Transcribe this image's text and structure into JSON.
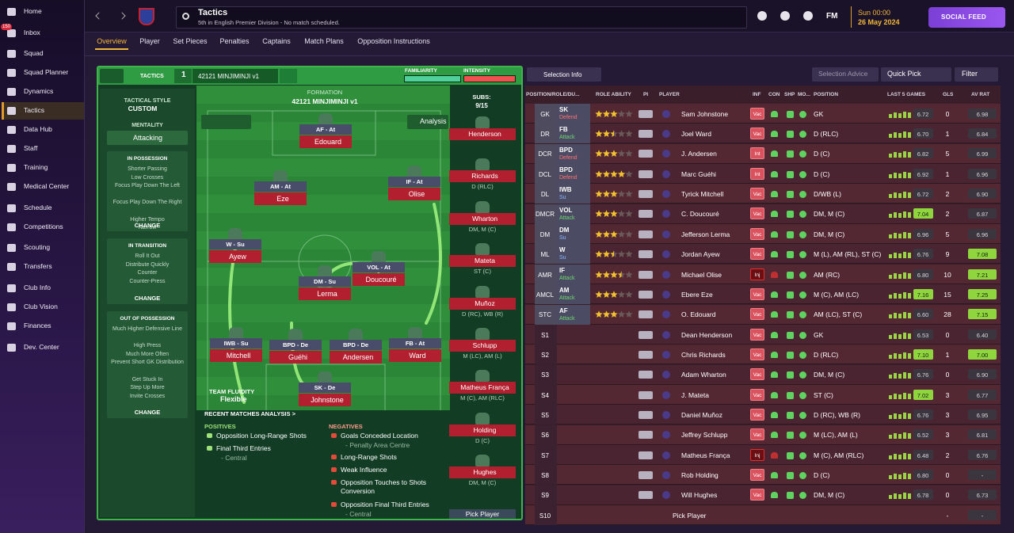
{
  "sidebar": {
    "items": [
      "Home",
      "Inbox",
      "Squad",
      "Squad Planner",
      "Dynamics",
      "Tactics",
      "Data Hub",
      "Staff",
      "Training",
      "Medical Center",
      "Schedule",
      "Competitions",
      "Scouting",
      "Transfers",
      "Club Info",
      "Club Vision",
      "Finances",
      "Dev. Center"
    ],
    "inbox_badge": "150"
  },
  "header": {
    "title": "Tactics",
    "subtitle": "5th in English Premier Division - No match scheduled.",
    "brand": "FM",
    "time": "Sun 00:00",
    "date": "26 May 2024",
    "social_feed": "SOCIAL FEED"
  },
  "tabs": [
    "Overview",
    "Player",
    "Set Pieces",
    "Penalties",
    "Captains",
    "Match Plans",
    "Opposition Instructions"
  ],
  "tactics": {
    "label": "TACTICS",
    "slot": "1",
    "name": "42121 MINJIMINJI v1",
    "familiarity": "FAMILIARITY",
    "intensity": "INTENSITY"
  },
  "style_panel": {
    "tactical_style_label": "TACTICAL STYLE",
    "tactical_style": "CUSTOM",
    "mentality_label": "MENTALITY",
    "mentality": "Attacking",
    "sections": [
      {
        "title": "IN POSSESSION",
        "items": [
          "Shorter Passing",
          "Low Crosses",
          "Focus Play Down The Left",
          "Focus Play Down The Right",
          "Higher Tempo",
          "Narrow"
        ],
        "action": "CHANGE"
      },
      {
        "title": "IN TRANSITION",
        "items": [
          "Roll It Out",
          "Distribute Quickly",
          "Counter",
          "Counter-Press"
        ],
        "action": "CHANGE"
      },
      {
        "title": "OUT OF POSSESSION",
        "items": [
          "Much Higher Defensive Line",
          "High Press",
          "Much More Often",
          "Prevent Short GK Distribution",
          "Get Stuck In",
          "Step Up More",
          "Invite Crosses"
        ],
        "action": "CHANGE"
      }
    ]
  },
  "pitch": {
    "formation_label": "FORMATION",
    "formation": "42121 MINJIMINJI v1",
    "analysis": "Analysis",
    "fluidity_label": "TEAM FLUIDITY",
    "fluidity": "Flexible",
    "players": [
      {
        "role": "AF - At",
        "name": "Edouard"
      },
      {
        "role": "AM - At",
        "name": "Eze"
      },
      {
        "role": "IF - At",
        "name": "Olise"
      },
      {
        "role": "W - Su",
        "name": "Ayew"
      },
      {
        "role": "VOL - At",
        "name": "Doucouré"
      },
      {
        "role": "DM - Su",
        "name": "Lerma"
      },
      {
        "role": "IWB - Su",
        "name": "Mitchell"
      },
      {
        "role": "BPD - De",
        "name": "Guéhi"
      },
      {
        "role": "BPD - De",
        "name": "Andersen"
      },
      {
        "role": "FB - At",
        "name": "Ward"
      },
      {
        "role": "SK - De",
        "name": "Johnstone"
      }
    ]
  },
  "subs": {
    "label": "SUBS:",
    "count": "9/15",
    "pick": "Pick Player",
    "players": [
      {
        "name": "Henderson"
      },
      {
        "name": "Richards",
        "position": "D (RLC)"
      },
      {
        "name": "Wharton",
        "position": "DM, M (C)"
      },
      {
        "name": "Mateta",
        "position": "ST (C)"
      },
      {
        "name": "Muñoz",
        "position": "D (RC), WB (R)"
      },
      {
        "name": "Schlupp",
        "position": "M (LC), AM (L)"
      },
      {
        "name": "Matheus França",
        "position": "M (C), AM (RLC)"
      },
      {
        "name": "Holding",
        "position": "D (C)"
      },
      {
        "name": "Hughes",
        "position": "DM, M (C)"
      }
    ]
  },
  "analysis": {
    "title": "RECENT MATCHES ANALYSIS >",
    "positives_label": "POSITIVES",
    "negatives_label": "NEGATIVES",
    "positives": [
      {
        "label": "Opposition Long-Range Shots"
      },
      {
        "label": "Final Third Entries",
        "detail": "- Central"
      }
    ],
    "negatives": [
      {
        "label": "Goals Conceded Location",
        "detail": "- Penalty Area Centre"
      },
      {
        "label": "Long-Range Shots"
      },
      {
        "label": "Weak Influence"
      },
      {
        "label": "Opposition Touches to Shots Conversion"
      },
      {
        "label": "Opposition Final Third Entries",
        "detail": "- Central"
      }
    ]
  },
  "table": {
    "selection_info": "Selection Info",
    "selection_advice": "Selection Advice",
    "quick_pick": "Quick Pick",
    "filter": "Filter",
    "columns": [
      "POSITION/ROLE/DU...",
      "ROLE ABILITY",
      "PI",
      "PLAYER",
      "INF",
      "CON",
      "SHP",
      "MO...",
      "POSITION",
      "LAST 5 GAMES",
      "GLS",
      "AV RAT"
    ],
    "rows": [
      {
        "pos": "GK",
        "role": "SK",
        "duty": "Defend",
        "ability": 3,
        "player": "Sam Johnstone",
        "inf": "Vac",
        "position": "GK",
        "form": "6.72",
        "goals": 0,
        "rating": "6.98"
      },
      {
        "pos": "DR",
        "role": "FB",
        "duty": "Attack",
        "ability": 2.5,
        "player": "Joel Ward",
        "inf": "Vac",
        "position": "D (RLC)",
        "form": "6.70",
        "goals": 1,
        "rating": "6.84"
      },
      {
        "pos": "DCR",
        "role": "BPD",
        "duty": "Defend",
        "ability": 3,
        "player": "J. Andersen",
        "inf": "Int",
        "position": "D (C)",
        "form": "6.82",
        "goals": 5,
        "rating": "6.99"
      },
      {
        "pos": "DCL",
        "role": "BPD",
        "duty": "Defend",
        "ability": 4,
        "player": "Marc Guéhi",
        "inf": "Int",
        "position": "D (C)",
        "form": "6.92",
        "goals": 1,
        "rating": "6.96"
      },
      {
        "pos": "DL",
        "role": "IWB",
        "duty": "Su",
        "ability": 3,
        "player": "Tyrick Mitchell",
        "inf": "Vac",
        "position": "D/WB (L)",
        "form": "6.72",
        "goals": 2,
        "rating": "6.90"
      },
      {
        "pos": "DMCR",
        "role": "VOL",
        "duty": "Attack",
        "ability": 3,
        "player": "C. Doucouré",
        "inf": "Vac",
        "position": "DM, M (C)",
        "form": "7.04",
        "goals": 2,
        "rating": "6.87"
      },
      {
        "pos": "DM",
        "role": "DM",
        "duty": "Su",
        "ability": 3,
        "player": "Jefferson Lerma",
        "inf": "Vac",
        "position": "DM, M (C)",
        "form": "6.96",
        "goals": 5,
        "rating": "6.96"
      },
      {
        "pos": "ML",
        "role": "W",
        "duty": "Su",
        "ability": 2.5,
        "player": "Jordan Ayew",
        "inf": "Vac",
        "position": "M (L), AM (RL), ST (C)",
        "form": "6.76",
        "goals": 9,
        "rating": "7.08"
      },
      {
        "pos": "AMR",
        "role": "IF",
        "duty": "Attack",
        "ability": 3.5,
        "player": "Michael Olise",
        "inf": "Inj",
        "position": "AM (RC)",
        "form": "6.80",
        "goals": 10,
        "rating": "7.21"
      },
      {
        "pos": "AMCL",
        "role": "AM",
        "duty": "Attack",
        "ability": 3,
        "player": "Ebere Eze",
        "inf": "Vac",
        "position": "M (C), AM (LC)",
        "form": "7.16",
        "goals": 15,
        "rating": "7.25"
      },
      {
        "pos": "STC",
        "role": "AF",
        "duty": "Attack",
        "ability": 3,
        "player": "O. Edouard",
        "inf": "Vac",
        "position": "AM (LC), ST (C)",
        "form": "6.60",
        "goals": 28,
        "rating": "7.15"
      },
      {
        "pos": "S1",
        "player": "Dean Henderson",
        "inf": "Vac",
        "position": "GK",
        "form": "6.53",
        "goals": 0,
        "rating": "6.40"
      },
      {
        "pos": "S2",
        "player": "Chris Richards",
        "inf": "Vac",
        "position": "D (RLC)",
        "form": "7.10",
        "goals": 1,
        "rating": "7.00"
      },
      {
        "pos": "S3",
        "player": "Adam Wharton",
        "inf": "Vac",
        "position": "DM, M (C)",
        "form": "6.76",
        "goals": 0,
        "rating": "6.90"
      },
      {
        "pos": "S4",
        "player": "J. Mateta",
        "inf": "Vac",
        "position": "ST (C)",
        "form": "7.02",
        "goals": 3,
        "rating": "6.77"
      },
      {
        "pos": "S5",
        "player": "Daniel Muñoz",
        "inf": "Vac",
        "position": "D (RC), WB (R)",
        "form": "6.76",
        "goals": 3,
        "rating": "6.95"
      },
      {
        "pos": "S6",
        "player": "Jeffrey Schlupp",
        "inf": "Vac",
        "position": "M (LC), AM (L)",
        "form": "6.52",
        "goals": 3,
        "rating": "6.81"
      },
      {
        "pos": "S7",
        "player": "Matheus França",
        "inf": "Inj",
        "position": "M (C), AM (RLC)",
        "form": "6.48",
        "goals": 2,
        "rating": "6.76"
      },
      {
        "pos": "S8",
        "player": "Rob Holding",
        "inf": "Vac",
        "position": "D (C)",
        "form": "6.80",
        "goals": 0,
        "rating": "-"
      },
      {
        "pos": "S9",
        "player": "Will Hughes",
        "inf": "Vac",
        "position": "DM, M (C)",
        "form": "6.78",
        "goals": 0,
        "rating": "6.73"
      },
      {
        "pos": "S10",
        "player": "Pick Player",
        "goals": "-",
        "rating": "-"
      }
    ]
  }
}
